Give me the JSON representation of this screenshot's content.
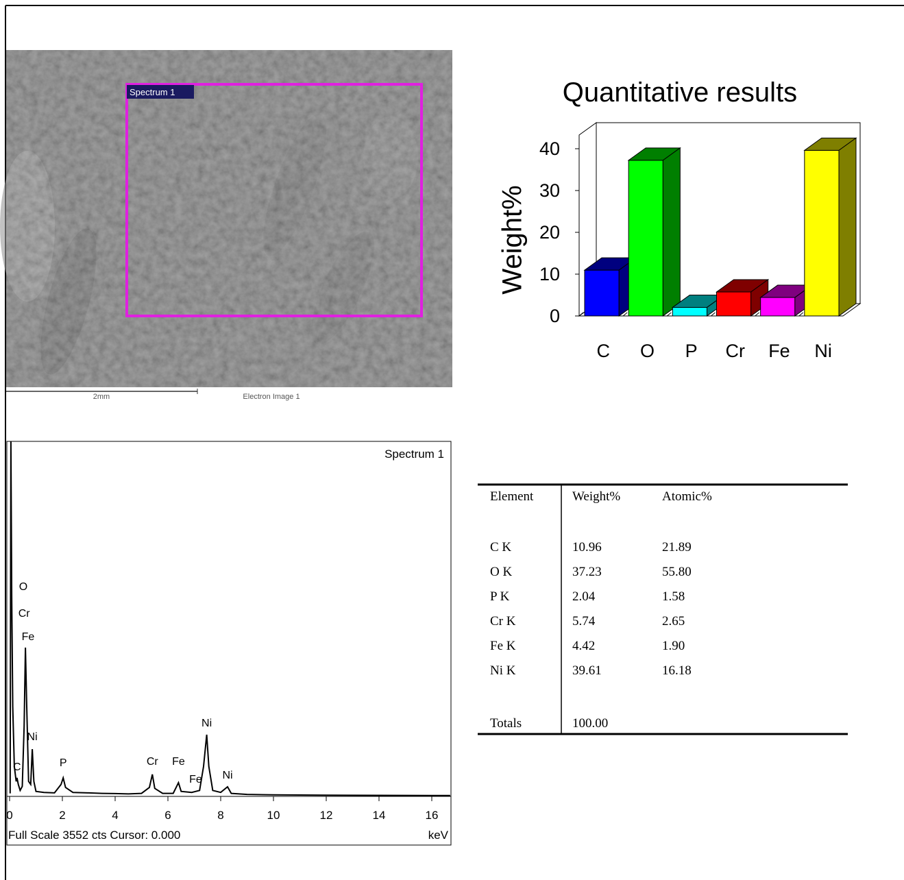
{
  "chart_data": [
    {
      "type": "bar3d",
      "title": "Quantitative results",
      "y_label": "Weight%",
      "categories": [
        "C",
        "O",
        "P",
        "Cr",
        "Fe",
        "Ni"
      ],
      "values": [
        10.96,
        37.23,
        2.04,
        5.74,
        4.42,
        39.61
      ],
      "colors": [
        "#0000ff",
        "#00ff00",
        "#00ffff",
        "#ff0000",
        "#ff00ff",
        "#ffff00"
      ],
      "ylim": [
        0,
        40
      ],
      "yticks": [
        0,
        10,
        20,
        30,
        40
      ]
    },
    {
      "type": "line",
      "title": "Spectrum 1",
      "color": "#000000",
      "x": [
        0.02,
        0.05,
        0.08,
        0.12,
        0.18,
        0.25,
        0.28,
        0.33,
        0.4,
        0.48,
        0.55,
        0.6,
        0.65,
        0.72,
        0.8,
        0.86,
        0.92,
        1.0,
        1.3,
        1.7,
        1.95,
        2.03,
        2.12,
        2.4,
        3.0,
        3.5,
        4.0,
        4.5,
        5.0,
        5.3,
        5.41,
        5.5,
        5.8,
        6.2,
        6.4,
        6.5,
        6.9,
        7.2,
        7.35,
        7.47,
        7.55,
        7.7,
        8.0,
        8.26,
        8.4,
        9.0,
        10,
        12,
        14,
        16,
        16.7
      ],
      "values": [
        30,
        3552,
        2000,
        900,
        300,
        150,
        185,
        120,
        60,
        100,
        700,
        1489,
        900,
        150,
        120,
        473,
        150,
        50,
        40,
        35,
        120,
        185,
        90,
        40,
        35,
        30,
        28,
        25,
        30,
        90,
        220,
        80,
        30,
        30,
        137,
        50,
        40,
        60,
        300,
        617,
        300,
        60,
        40,
        96,
        30,
        20,
        15,
        12,
        10,
        8,
        8
      ],
      "xlim": [
        0,
        16.7
      ],
      "ylim": [
        0,
        3552
      ],
      "xticks": [
        0,
        2,
        4,
        6,
        8,
        10,
        12,
        14,
        16
      ],
      "x_label": "keV",
      "footer": "Full Scale 3552 cts Cursor: 0.000",
      "annotations": [
        {
          "text": "O",
          "x": 0.52
        },
        {
          "text": "Cr",
          "x": 0.55
        },
        {
          "text": "Fe",
          "x": 0.7
        },
        {
          "text": "C",
          "x": 0.28
        },
        {
          "text": "Ni",
          "x": 0.86
        },
        {
          "text": "P",
          "x": 2.03
        },
        {
          "text": "Cr",
          "x": 5.41
        },
        {
          "text": "Fe",
          "x": 6.4
        },
        {
          "text": "Fe",
          "x": 7.05
        },
        {
          "text": "Ni",
          "x": 7.47
        },
        {
          "text": "Ni",
          "x": 8.26
        }
      ]
    }
  ],
  "image": {
    "label": "Spectrum 1",
    "scale": "2mm",
    "caption": "Electron Image 1"
  },
  "table": {
    "header": [
      "Element",
      "Weight%",
      "Atomic%"
    ],
    "rows": [
      [
        "C K",
        "10.96",
        "21.89"
      ],
      [
        "O K",
        "37.23",
        "55.80"
      ],
      [
        "P K",
        "2.04",
        "1.58"
      ],
      [
        "Cr K",
        "5.74",
        "2.65"
      ],
      [
        "Fe K",
        "4.42",
        "1.90"
      ],
      [
        "Ni K",
        "39.61",
        "16.18"
      ]
    ],
    "totals": [
      "Totals",
      "100.00"
    ]
  }
}
